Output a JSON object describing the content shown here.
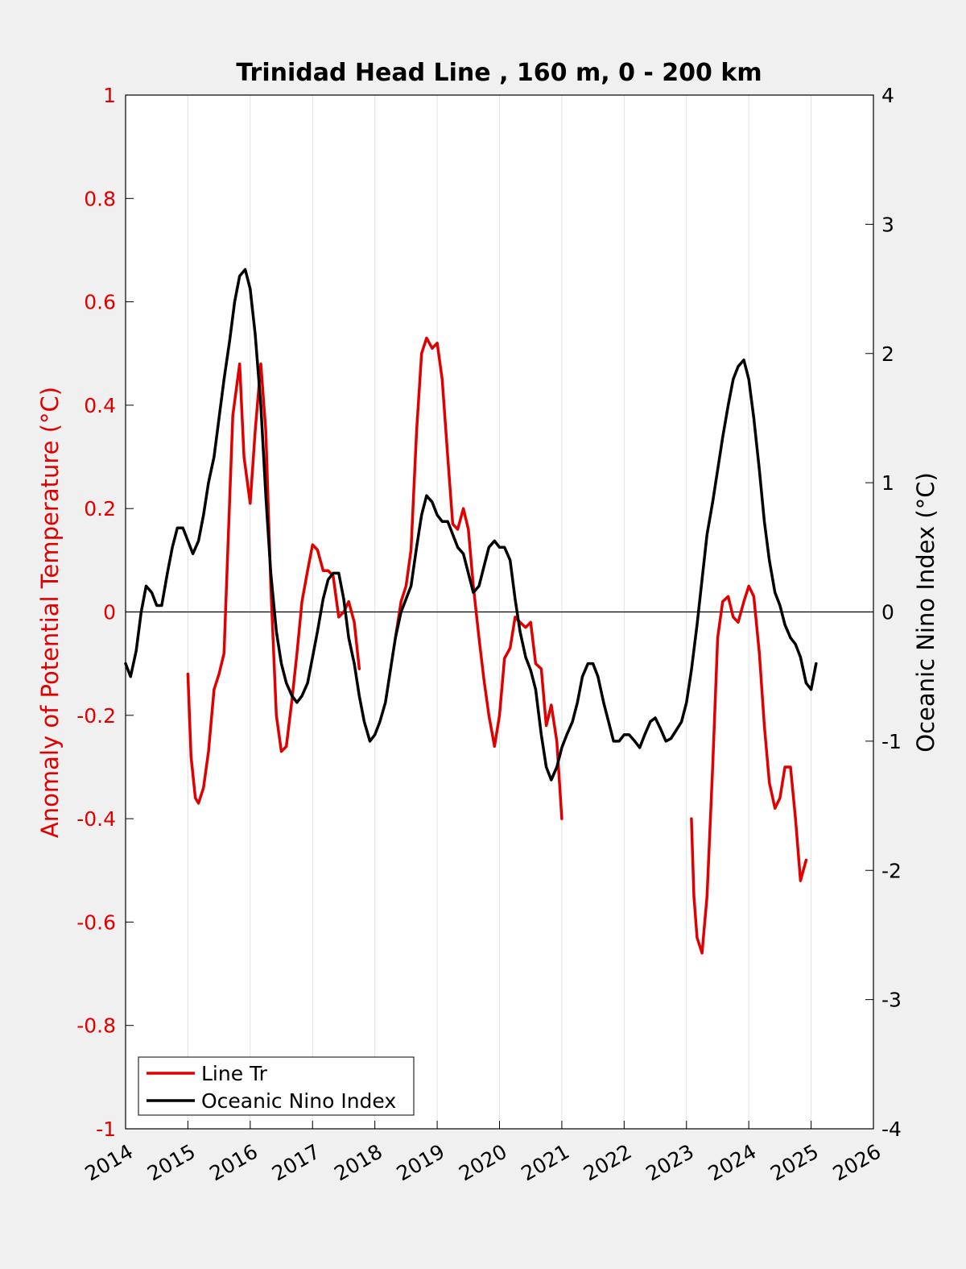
{
  "chart_data": {
    "type": "line",
    "title": "Trinidad Head Line , 160 m, 0 - 200 km",
    "xlabel": "",
    "ylabel_left": "Anomaly of Potential Temperature (°C)",
    "ylabel_right": "Oceanic Nino Index (°C)",
    "xlim": [
      2014,
      2026
    ],
    "ylim_left": [
      -1,
      1
    ],
    "ylim_right": [
      -4,
      4
    ],
    "x_ticks": [
      "2014",
      "2015",
      "2016",
      "2017",
      "2018",
      "2019",
      "2020",
      "2021",
      "2022",
      "2023",
      "2024",
      "2025",
      "2026"
    ],
    "y_ticks_left": [
      "1",
      "0.8",
      "0.6",
      "0.4",
      "0.2",
      "0",
      "-0.2",
      "-0.4",
      "-0.6",
      "-0.8",
      "-1"
    ],
    "y_ticks_right": [
      "4",
      "3",
      "2",
      "1",
      "0",
      "-1",
      "-2",
      "-3",
      "-4"
    ],
    "grid": "vertical",
    "legend_position": "bottom-left",
    "colors": {
      "line_tr": "#e00000",
      "oni": "#000000",
      "background": "#f0f0f0",
      "plot": "#ffffff"
    },
    "series": [
      {
        "name": "Line Tr",
        "axis": "left",
        "segments": [
          [
            [
              2015.0,
              -0.12
            ],
            [
              2015.05,
              -0.28
            ],
            [
              2015.12,
              -0.36
            ],
            [
              2015.17,
              -0.37
            ],
            [
              2015.25,
              -0.34
            ],
            [
              2015.33,
              -0.27
            ],
            [
              2015.42,
              -0.15
            ],
            [
              2015.5,
              -0.12
            ],
            [
              2015.58,
              -0.08
            ],
            [
              2015.65,
              0.15
            ],
            [
              2015.72,
              0.38
            ],
            [
              2015.83,
              0.48
            ],
            [
              2015.9,
              0.3
            ],
            [
              2016.0,
              0.21
            ],
            [
              2016.08,
              0.35
            ],
            [
              2016.17,
              0.48
            ],
            [
              2016.25,
              0.35
            ],
            [
              2016.33,
              0.05
            ],
            [
              2016.42,
              -0.2
            ],
            [
              2016.5,
              -0.27
            ],
            [
              2016.58,
              -0.26
            ],
            [
              2016.67,
              -0.17
            ],
            [
              2016.75,
              -0.08
            ],
            [
              2016.83,
              0.02
            ],
            [
              2016.92,
              0.08
            ],
            [
              2017.0,
              0.13
            ],
            [
              2017.08,
              0.12
            ],
            [
              2017.17,
              0.08
            ],
            [
              2017.25,
              0.08
            ],
            [
              2017.33,
              0.07
            ],
            [
              2017.42,
              -0.01
            ],
            [
              2017.5,
              0.0
            ],
            [
              2017.58,
              0.02
            ],
            [
              2017.67,
              -0.02
            ],
            [
              2017.75,
              -0.11
            ]
          ],
          [
            [
              2018.33,
              -0.05
            ],
            [
              2018.42,
              0.02
            ],
            [
              2018.5,
              0.05
            ],
            [
              2018.58,
              0.12
            ],
            [
              2018.67,
              0.35
            ],
            [
              2018.75,
              0.5
            ],
            [
              2018.83,
              0.53
            ],
            [
              2018.92,
              0.51
            ],
            [
              2019.0,
              0.52
            ],
            [
              2019.08,
              0.45
            ],
            [
              2019.17,
              0.3
            ],
            [
              2019.25,
              0.17
            ],
            [
              2019.33,
              0.16
            ],
            [
              2019.42,
              0.2
            ],
            [
              2019.5,
              0.16
            ],
            [
              2019.58,
              0.05
            ],
            [
              2019.67,
              -0.05
            ],
            [
              2019.75,
              -0.13
            ],
            [
              2019.83,
              -0.2
            ],
            [
              2019.92,
              -0.26
            ],
            [
              2020.0,
              -0.2
            ],
            [
              2020.08,
              -0.09
            ],
            [
              2020.17,
              -0.07
            ],
            [
              2020.25,
              -0.01
            ],
            [
              2020.33,
              -0.02
            ],
            [
              2020.42,
              -0.03
            ],
            [
              2020.5,
              -0.02
            ],
            [
              2020.58,
              -0.1
            ],
            [
              2020.67,
              -0.11
            ],
            [
              2020.75,
              -0.22
            ],
            [
              2020.83,
              -0.18
            ],
            [
              2020.92,
              -0.25
            ],
            [
              2021.0,
              -0.4
            ]
          ],
          [
            [
              2023.08,
              -0.4
            ],
            [
              2023.12,
              -0.55
            ],
            [
              2023.17,
              -0.63
            ],
            [
              2023.25,
              -0.66
            ],
            [
              2023.33,
              -0.55
            ],
            [
              2023.42,
              -0.3
            ],
            [
              2023.5,
              -0.05
            ],
            [
              2023.58,
              0.02
            ],
            [
              2023.67,
              0.03
            ],
            [
              2023.75,
              -0.01
            ],
            [
              2023.83,
              -0.02
            ],
            [
              2023.92,
              0.02
            ],
            [
              2024.0,
              0.05
            ],
            [
              2024.08,
              0.03
            ],
            [
              2024.17,
              -0.08
            ],
            [
              2024.25,
              -0.22
            ],
            [
              2024.33,
              -0.33
            ],
            [
              2024.42,
              -0.38
            ],
            [
              2024.5,
              -0.36
            ],
            [
              2024.58,
              -0.3
            ],
            [
              2024.67,
              -0.3
            ],
            [
              2024.75,
              -0.4
            ],
            [
              2024.83,
              -0.52
            ],
            [
              2024.92,
              -0.48
            ]
          ]
        ]
      },
      {
        "name": "Oceanic Nino Index",
        "axis": "right",
        "points": [
          [
            2014.0,
            -0.4
          ],
          [
            2014.08,
            -0.5
          ],
          [
            2014.17,
            -0.3
          ],
          [
            2014.25,
            0.0
          ],
          [
            2014.33,
            0.2
          ],
          [
            2014.42,
            0.15
          ],
          [
            2014.5,
            0.05
          ],
          [
            2014.58,
            0.05
          ],
          [
            2014.67,
            0.3
          ],
          [
            2014.75,
            0.5
          ],
          [
            2014.83,
            0.65
          ],
          [
            2014.92,
            0.65
          ],
          [
            2015.0,
            0.55
          ],
          [
            2015.08,
            0.45
          ],
          [
            2015.17,
            0.55
          ],
          [
            2015.25,
            0.75
          ],
          [
            2015.33,
            1.0
          ],
          [
            2015.42,
            1.2
          ],
          [
            2015.5,
            1.5
          ],
          [
            2015.58,
            1.8
          ],
          [
            2015.67,
            2.1
          ],
          [
            2015.75,
            2.4
          ],
          [
            2015.83,
            2.6
          ],
          [
            2015.92,
            2.65
          ],
          [
            2016.0,
            2.5
          ],
          [
            2016.08,
            2.15
          ],
          [
            2016.17,
            1.6
          ],
          [
            2016.25,
            0.9
          ],
          [
            2016.33,
            0.3
          ],
          [
            2016.42,
            -0.15
          ],
          [
            2016.5,
            -0.4
          ],
          [
            2016.58,
            -0.55
          ],
          [
            2016.67,
            -0.65
          ],
          [
            2016.75,
            -0.7
          ],
          [
            2016.83,
            -0.65
          ],
          [
            2016.92,
            -0.55
          ],
          [
            2017.0,
            -0.35
          ],
          [
            2017.08,
            -0.15
          ],
          [
            2017.17,
            0.1
          ],
          [
            2017.25,
            0.25
          ],
          [
            2017.33,
            0.3
          ],
          [
            2017.42,
            0.3
          ],
          [
            2017.5,
            0.1
          ],
          [
            2017.58,
            -0.2
          ],
          [
            2017.67,
            -0.4
          ],
          [
            2017.75,
            -0.65
          ],
          [
            2017.83,
            -0.85
          ],
          [
            2017.92,
            -1.0
          ],
          [
            2018.0,
            -0.95
          ],
          [
            2018.08,
            -0.85
          ],
          [
            2018.17,
            -0.7
          ],
          [
            2018.25,
            -0.45
          ],
          [
            2018.33,
            -0.2
          ],
          [
            2018.42,
            0.0
          ],
          [
            2018.5,
            0.1
          ],
          [
            2018.58,
            0.2
          ],
          [
            2018.67,
            0.5
          ],
          [
            2018.75,
            0.75
          ],
          [
            2018.83,
            0.9
          ],
          [
            2018.92,
            0.85
          ],
          [
            2019.0,
            0.75
          ],
          [
            2019.08,
            0.7
          ],
          [
            2019.17,
            0.7
          ],
          [
            2019.25,
            0.6
          ],
          [
            2019.33,
            0.5
          ],
          [
            2019.42,
            0.45
          ],
          [
            2019.5,
            0.3
          ],
          [
            2019.58,
            0.15
          ],
          [
            2019.67,
            0.2
          ],
          [
            2019.75,
            0.35
          ],
          [
            2019.83,
            0.5
          ],
          [
            2019.92,
            0.55
          ],
          [
            2020.0,
            0.5
          ],
          [
            2020.08,
            0.5
          ],
          [
            2020.17,
            0.4
          ],
          [
            2020.25,
            0.1
          ],
          [
            2020.33,
            -0.15
          ],
          [
            2020.42,
            -0.35
          ],
          [
            2020.5,
            -0.45
          ],
          [
            2020.58,
            -0.6
          ],
          [
            2020.67,
            -0.95
          ],
          [
            2020.75,
            -1.2
          ],
          [
            2020.83,
            -1.3
          ],
          [
            2020.92,
            -1.2
          ],
          [
            2021.0,
            -1.05
          ],
          [
            2021.08,
            -0.95
          ],
          [
            2021.17,
            -0.85
          ],
          [
            2021.25,
            -0.7
          ],
          [
            2021.33,
            -0.5
          ],
          [
            2021.42,
            -0.4
          ],
          [
            2021.5,
            -0.4
          ],
          [
            2021.58,
            -0.5
          ],
          [
            2021.67,
            -0.7
          ],
          [
            2021.75,
            -0.85
          ],
          [
            2021.83,
            -1.0
          ],
          [
            2021.92,
            -1.0
          ],
          [
            2022.0,
            -0.95
          ],
          [
            2022.08,
            -0.95
          ],
          [
            2022.17,
            -1.0
          ],
          [
            2022.25,
            -1.05
          ],
          [
            2022.33,
            -0.95
          ],
          [
            2022.42,
            -0.85
          ],
          [
            2022.5,
            -0.82
          ],
          [
            2022.58,
            -0.9
          ],
          [
            2022.67,
            -1.0
          ],
          [
            2022.75,
            -0.98
          ],
          [
            2022.83,
            -0.92
          ],
          [
            2022.92,
            -0.85
          ],
          [
            2023.0,
            -0.7
          ],
          [
            2023.08,
            -0.45
          ],
          [
            2023.17,
            -0.1
          ],
          [
            2023.25,
            0.25
          ],
          [
            2023.33,
            0.6
          ],
          [
            2023.42,
            0.85
          ],
          [
            2023.5,
            1.1
          ],
          [
            2023.58,
            1.35
          ],
          [
            2023.67,
            1.6
          ],
          [
            2023.75,
            1.8
          ],
          [
            2023.83,
            1.9
          ],
          [
            2023.92,
            1.95
          ],
          [
            2024.0,
            1.8
          ],
          [
            2024.08,
            1.5
          ],
          [
            2024.17,
            1.1
          ],
          [
            2024.25,
            0.7
          ],
          [
            2024.33,
            0.4
          ],
          [
            2024.42,
            0.15
          ],
          [
            2024.5,
            0.05
          ],
          [
            2024.58,
            -0.1
          ],
          [
            2024.67,
            -0.2
          ],
          [
            2024.75,
            -0.25
          ],
          [
            2024.83,
            -0.35
          ],
          [
            2024.92,
            -0.55
          ],
          [
            2025.0,
            -0.6
          ],
          [
            2025.08,
            -0.4
          ]
        ]
      }
    ]
  }
}
